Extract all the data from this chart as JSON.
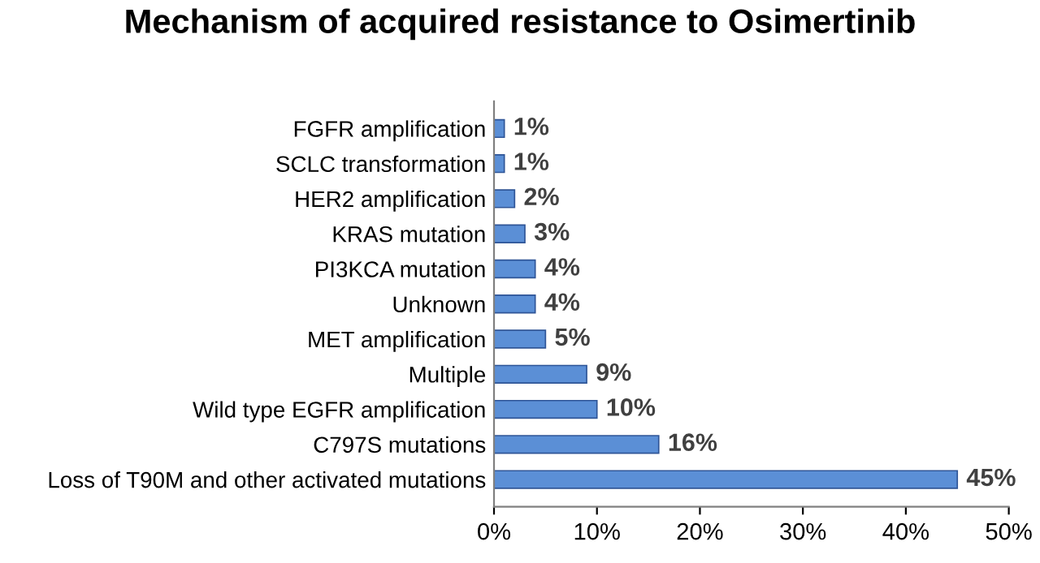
{
  "chart_data": {
    "type": "bar",
    "orientation": "horizontal",
    "title": "Mechanism of acquired resistance to Osimertinib",
    "categories": [
      "FGFR amplification",
      "SCLC transformation",
      "HER2 amplification",
      "KRAS mutation",
      "PI3KCA mutation",
      "Unknown",
      "MET amplification",
      "Multiple",
      "Wild type EGFR amplification",
      "C797S mutations",
      "Loss of T90M and other activated mutations"
    ],
    "values": [
      1,
      1,
      2,
      3,
      4,
      4,
      5,
      9,
      10,
      16,
      45
    ],
    "value_labels": [
      "1%",
      "1%",
      "2%",
      "3%",
      "4%",
      "4%",
      "5%",
      "9%",
      "10%",
      "16%",
      "45%"
    ],
    "color": "#5b8fd6",
    "xlim": [
      0,
      50
    ],
    "xticks": [
      {
        "value": 0,
        "label": "0%"
      },
      {
        "value": 10,
        "label": "10%"
      },
      {
        "value": 20,
        "label": "20%"
      },
      {
        "value": 30,
        "label": "30%"
      },
      {
        "value": 40,
        "label": "40%"
      },
      {
        "value": 50,
        "label": "50%"
      }
    ],
    "grid": false
  }
}
